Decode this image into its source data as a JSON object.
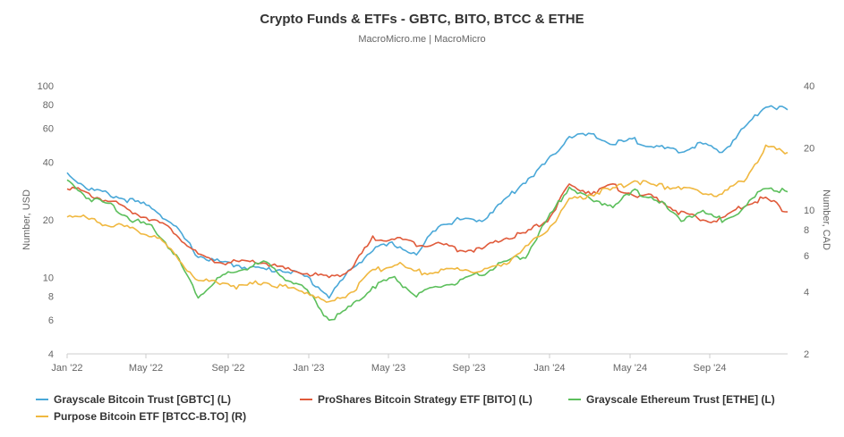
{
  "title": "Crypto Funds & ETFs - GBTC, BITO, BTCC & ETHE",
  "subtitle": "MacroMicro.me | MacroMicro",
  "chart_data": {
    "type": "line",
    "x_ticks": [
      "Jan '22",
      "May '22",
      "Sep '22",
      "Jan '23",
      "May '23",
      "Sep '23",
      "Jan '24",
      "May '24",
      "Sep '24"
    ],
    "y_left": {
      "label": "Number, USD",
      "scale": "log",
      "range": [
        4,
        100
      ],
      "ticks": [
        "100",
        "80",
        "60",
        "40",
        "20",
        "10",
        "8",
        "6",
        "4"
      ]
    },
    "y_right": {
      "label": "Number, CAD",
      "scale": "log",
      "range": [
        2,
        40
      ],
      "ticks": [
        "40",
        "20",
        "10",
        "8",
        "6",
        "4",
        "2"
      ]
    },
    "series": [
      {
        "name": "Grayscale Bitcoin Trust [GBTC] (L)",
        "axis": "left",
        "color": "#4aa8d8",
        "points": [
          [
            0,
            35
          ],
          [
            1,
            29
          ],
          [
            2,
            27
          ],
          [
            3,
            25
          ],
          [
            4,
            23
          ],
          [
            5,
            18
          ],
          [
            6,
            13
          ],
          [
            7,
            12
          ],
          [
            8,
            11.5
          ],
          [
            9,
            11
          ],
          [
            10,
            11
          ],
          [
            11,
            10
          ],
          [
            12,
            8
          ],
          [
            13,
            11
          ],
          [
            14,
            14
          ],
          [
            15,
            15
          ],
          [
            16,
            13
          ],
          [
            17,
            19
          ],
          [
            18,
            20
          ],
          [
            19,
            20
          ],
          [
            20,
            25
          ],
          [
            21,
            32
          ],
          [
            22,
            40
          ],
          [
            23,
            55
          ],
          [
            24,
            55
          ],
          [
            25,
            50
          ],
          [
            26,
            52
          ],
          [
            27,
            48
          ],
          [
            28,
            45
          ],
          [
            29,
            50
          ],
          [
            30,
            45
          ],
          [
            31,
            60
          ],
          [
            32,
            80
          ],
          [
            33,
            75
          ]
        ]
      },
      {
        "name": "ProShares Bitcoin Strategy ETF [BITO] (L)",
        "axis": "left",
        "color": "#e05a3a",
        "points": [
          [
            0,
            30
          ],
          [
            1,
            27
          ],
          [
            2,
            25
          ],
          [
            3,
            22
          ],
          [
            4,
            20
          ],
          [
            5,
            17
          ],
          [
            6,
            13
          ],
          [
            7,
            12
          ],
          [
            8,
            12
          ],
          [
            9,
            12
          ],
          [
            10,
            11
          ],
          [
            11,
            10.5
          ],
          [
            12,
            10
          ],
          [
            13,
            11
          ],
          [
            14,
            16
          ],
          [
            15,
            16
          ],
          [
            16,
            15
          ],
          [
            17,
            15
          ],
          [
            18,
            14
          ],
          [
            19,
            14
          ],
          [
            20,
            16
          ],
          [
            21,
            17
          ],
          [
            22,
            20
          ],
          [
            23,
            30
          ],
          [
            24,
            28
          ],
          [
            25,
            30
          ],
          [
            26,
            27
          ],
          [
            27,
            26
          ],
          [
            28,
            22
          ],
          [
            29,
            20
          ],
          [
            30,
            20
          ],
          [
            31,
            24
          ],
          [
            32,
            26
          ],
          [
            33,
            22
          ]
        ]
      },
      {
        "name": "Grayscale Ethereum Trust [ETHE] (L)",
        "axis": "left",
        "color": "#5cbf5c",
        "points": [
          [
            0,
            32
          ],
          [
            1,
            26
          ],
          [
            2,
            24
          ],
          [
            3,
            20
          ],
          [
            4,
            18
          ],
          [
            5,
            13
          ],
          [
            6,
            8
          ],
          [
            7,
            10
          ],
          [
            8,
            11
          ],
          [
            9,
            12
          ],
          [
            10,
            10
          ],
          [
            11,
            8.5
          ],
          [
            12,
            6
          ],
          [
            13,
            7
          ],
          [
            14,
            9
          ],
          [
            15,
            10
          ],
          [
            16,
            8
          ],
          [
            17,
            9
          ],
          [
            18,
            9.5
          ],
          [
            19,
            10.5
          ],
          [
            20,
            12
          ],
          [
            21,
            13
          ],
          [
            22,
            20
          ],
          [
            23,
            30
          ],
          [
            24,
            25
          ],
          [
            25,
            24
          ],
          [
            26,
            28
          ],
          [
            27,
            26
          ],
          [
            28,
            20
          ],
          [
            29,
            22
          ],
          [
            30,
            20
          ],
          [
            31,
            23
          ],
          [
            32,
            30
          ],
          [
            33,
            28
          ]
        ]
      },
      {
        "name": "Purpose Bitcoin ETF [BTCC-B.TO] (R)",
        "axis": "right",
        "color": "#f0b840",
        "points": [
          [
            0,
            9.5
          ],
          [
            1,
            9
          ],
          [
            2,
            8.5
          ],
          [
            3,
            8
          ],
          [
            4,
            7.5
          ],
          [
            5,
            6
          ],
          [
            6,
            4.5
          ],
          [
            7,
            4.5
          ],
          [
            8,
            4.2
          ],
          [
            9,
            4.5
          ],
          [
            10,
            4.2
          ],
          [
            11,
            4
          ],
          [
            12,
            3.5
          ],
          [
            13,
            4
          ],
          [
            14,
            5
          ],
          [
            15,
            5.5
          ],
          [
            16,
            5
          ],
          [
            17,
            5
          ],
          [
            18,
            5.2
          ],
          [
            19,
            5
          ],
          [
            20,
            5.5
          ],
          [
            21,
            6.5
          ],
          [
            22,
            8
          ],
          [
            23,
            11
          ],
          [
            24,
            12
          ],
          [
            25,
            12.5
          ],
          [
            26,
            14
          ],
          [
            27,
            13
          ],
          [
            28,
            13
          ],
          [
            29,
            12
          ],
          [
            30,
            12
          ],
          [
            31,
            14
          ],
          [
            32,
            20
          ],
          [
            33,
            19
          ]
        ]
      }
    ]
  },
  "legend": [
    {
      "label": "Grayscale Bitcoin Trust [GBTC] (L)",
      "color": "#4aa8d8"
    },
    {
      "label": "ProShares Bitcoin Strategy ETF [BITO] (L)",
      "color": "#e05a3a"
    },
    {
      "label": "Grayscale Ethereum Trust [ETHE] (L)",
      "color": "#5cbf5c"
    },
    {
      "label": "Purpose Bitcoin ETF [BTCC-B.TO] (R)",
      "color": "#f0b840"
    }
  ]
}
